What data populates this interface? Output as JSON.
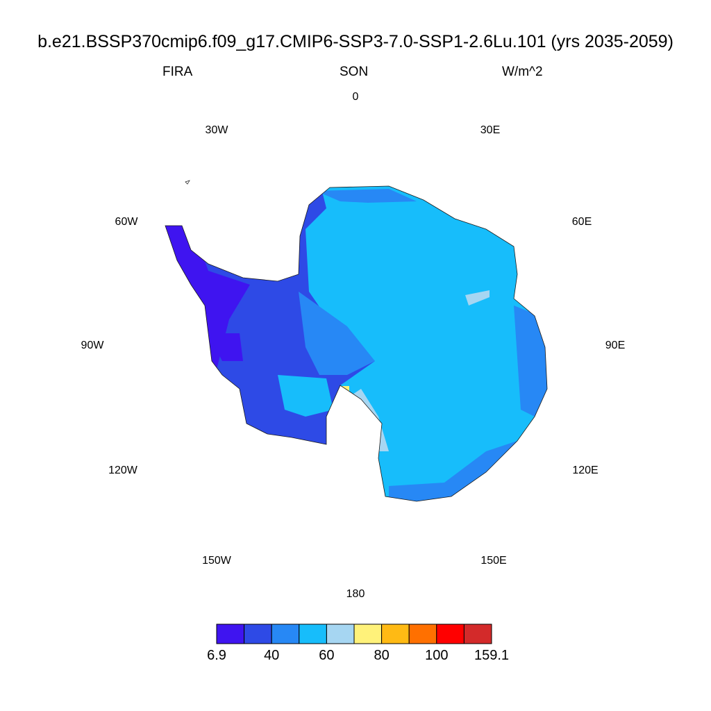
{
  "header": {
    "title": "b.e21.BSSP370cmip6.f09_g17.CMIP6-SSP3-7.0-SSP1-2.6Lu.101 (yrs 2035-2059)",
    "variable": "FIRA",
    "season": "SON",
    "units": "W/m^2"
  },
  "map": {
    "projection": "south-polar-stereographic",
    "region": "Antarctica",
    "longitude_labels": [
      "0",
      "30E",
      "60E",
      "90E",
      "120E",
      "150E",
      "180",
      "150W",
      "120W",
      "90W",
      "60W",
      "30W"
    ]
  },
  "colorbar": {
    "colors": [
      "#3f14f0",
      "#2e4ae6",
      "#2788f5",
      "#17bdfb",
      "#a6d6f2",
      "#fff27a",
      "#ffba14",
      "#ff7000",
      "#ff0000",
      "#d32a2a"
    ],
    "tick_labels": [
      "6.9",
      "40",
      "60",
      "80",
      "100",
      "159.1"
    ]
  }
}
